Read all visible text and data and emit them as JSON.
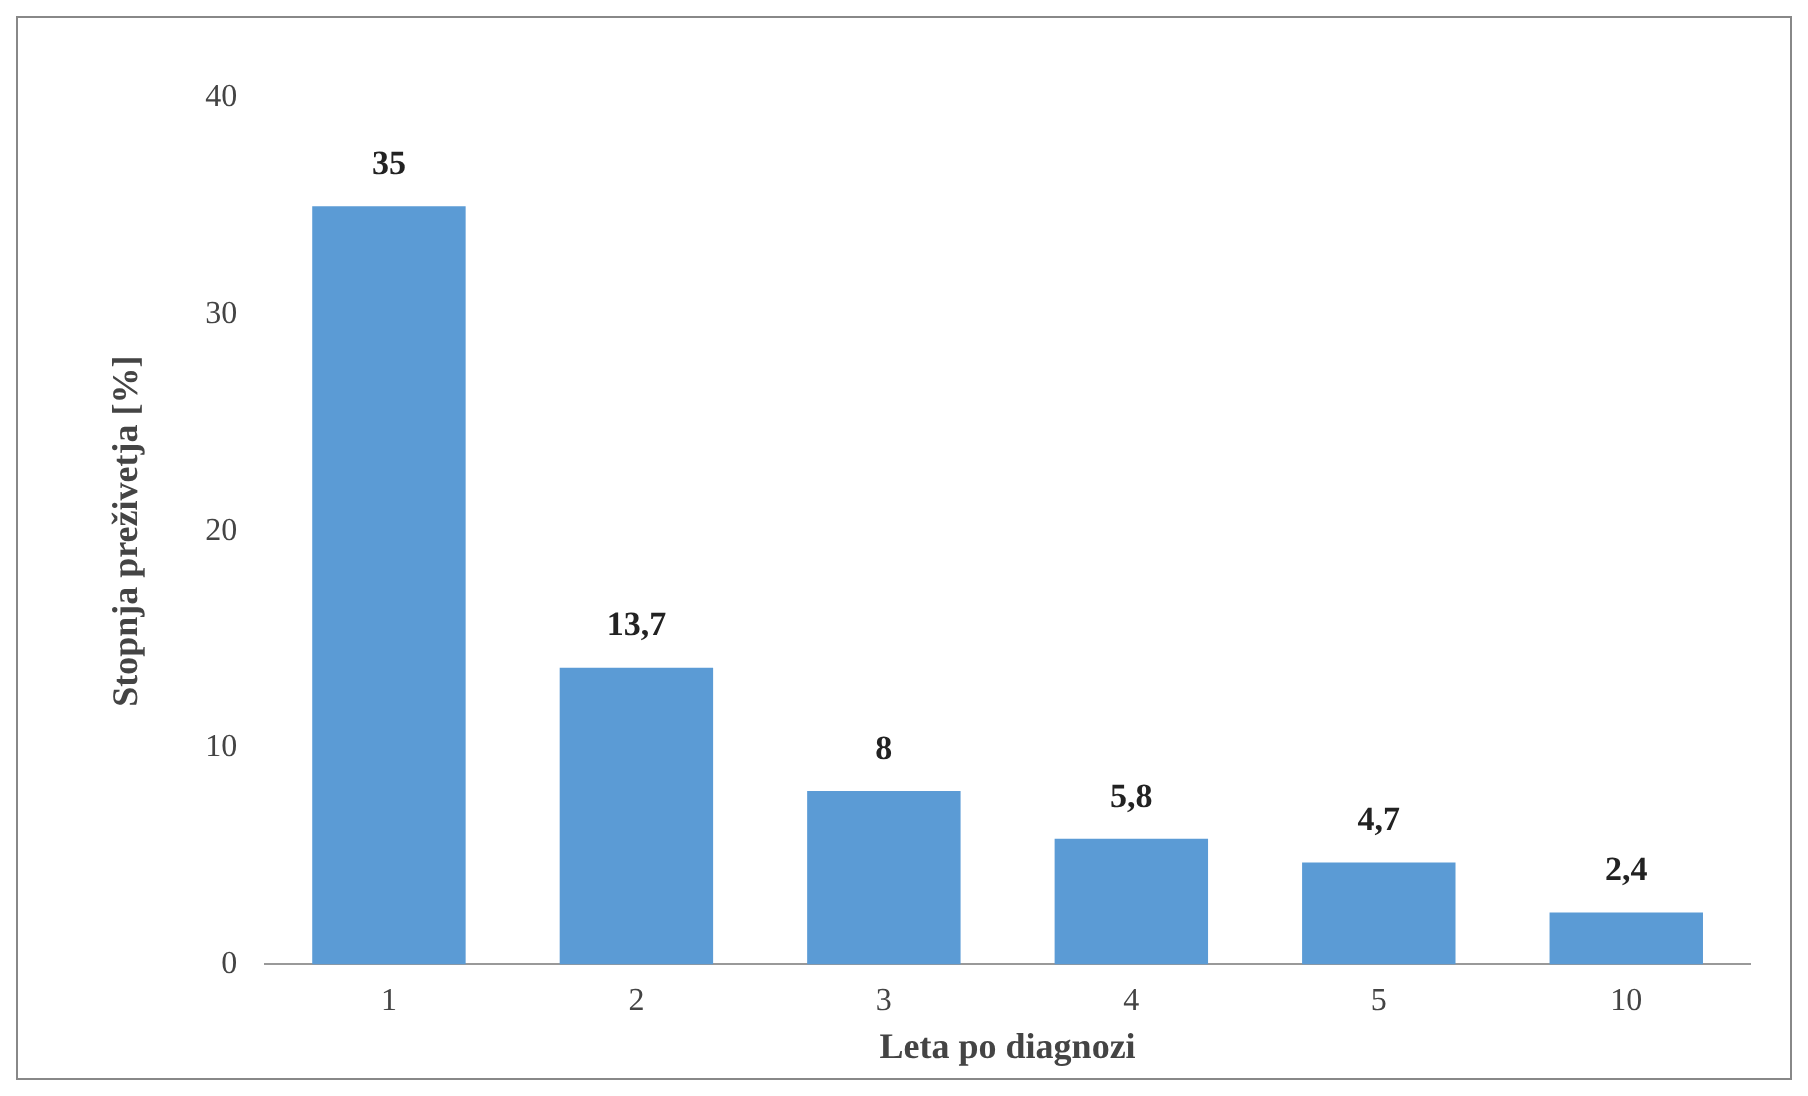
{
  "chart_data": {
    "type": "bar",
    "xlabel": "Leta po diagnozi",
    "ylabel": "Stopnja preživetja [%]",
    "categories": [
      "1",
      "2",
      "3",
      "4",
      "5",
      "10"
    ],
    "values": [
      35,
      13.7,
      8,
      5.8,
      4.7,
      2.4
    ],
    "value_labels": [
      "35",
      "13,7",
      "8",
      "5,8",
      "4,7",
      "2,4"
    ],
    "color": "#5b9bd5",
    "ylim": [
      0,
      40
    ],
    "yticks": [
      0,
      10,
      20,
      30,
      40
    ],
    "grid": false,
    "legend": false
  }
}
